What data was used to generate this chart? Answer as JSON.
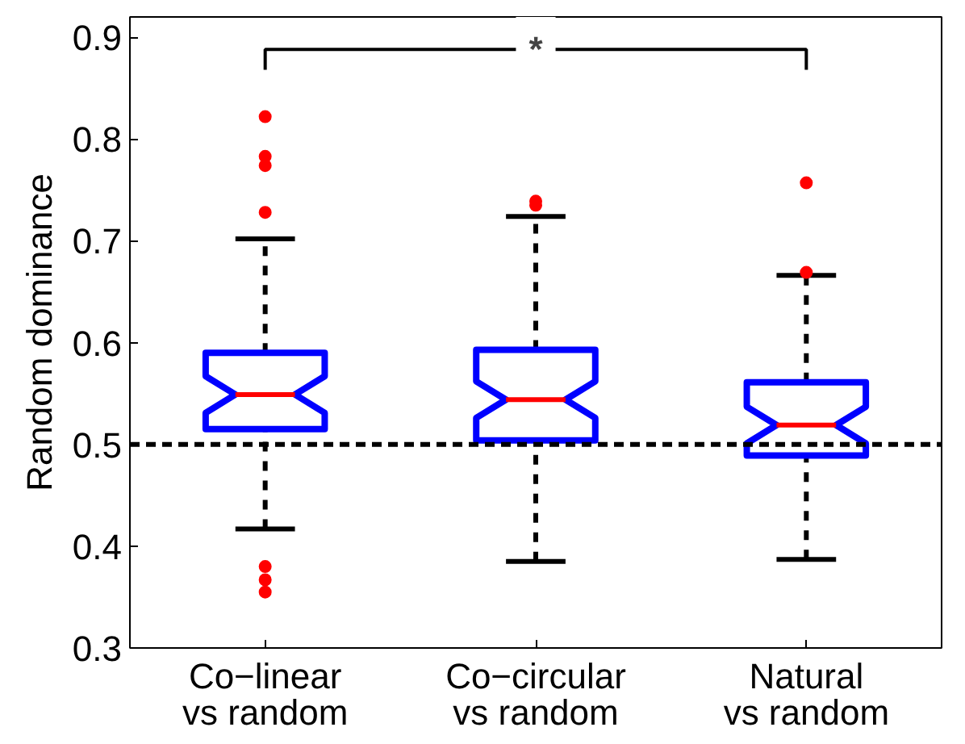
{
  "chart_data": {
    "type": "box",
    "ylabel": "Random dominance",
    "categories": [
      "Co−linear\nvs random",
      "Co−circular\nvs random",
      "Natural\nvs random"
    ],
    "boxes": [
      {
        "low": 0.417,
        "q1": 0.515,
        "median": 0.549,
        "q3": 0.59,
        "high": 0.702,
        "outliers": [
          0.822,
          0.783,
          0.774,
          0.728,
          0.38,
          0.367,
          0.355
        ]
      },
      {
        "low": 0.385,
        "q1": 0.504,
        "median": 0.544,
        "q3": 0.593,
        "high": 0.724,
        "outliers": [
          0.739,
          0.735
        ]
      },
      {
        "low": 0.387,
        "q1": 0.489,
        "median": 0.519,
        "q3": 0.561,
        "high": 0.666,
        "outliers": [
          0.757,
          0.669
        ]
      }
    ],
    "color": "#0000ff",
    "ylim": [
      0.3,
      0.92
    ],
    "yticks": [
      0.3,
      0.4,
      0.5,
      0.6,
      0.7,
      0.8,
      0.9
    ],
    "ref_lines": [
      {
        "axis": "y",
        "value": 0.5,
        "color": "#000000",
        "line_style": "dashed"
      }
    ],
    "annotations": [
      "*"
    ],
    "grid": false
  }
}
